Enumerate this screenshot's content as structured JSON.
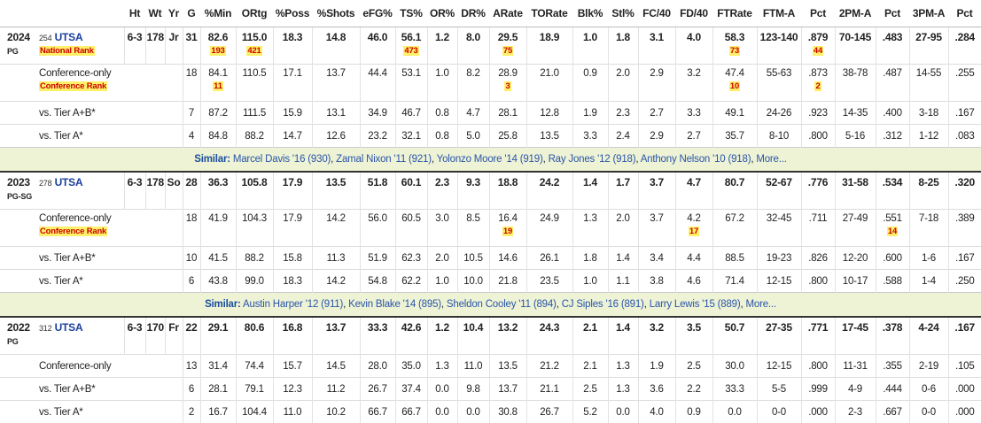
{
  "columns": [
    "Ht",
    "Wt",
    "Yr",
    "G",
    "%Min",
    "ORtg",
    "%Poss",
    "%Shots",
    "eFG%",
    "TS%",
    "OR%",
    "DR%",
    "ARate",
    "TORate",
    "Blk%",
    "Stl%",
    "FC/40",
    "FD/40",
    "FTRate",
    "FTM-A",
    "Pct",
    "2PM-A",
    "Pct",
    "3PM-A",
    "Pct"
  ],
  "seasons": [
    {
      "year": "2024",
      "position": "PG",
      "team_rank": "254",
      "team": "UTSA",
      "cells": [
        "6-3",
        "178",
        "Jr",
        "31",
        "82.6",
        "115.0",
        "18.3",
        "14.8",
        "46.0",
        "56.1",
        "1.2",
        "8.0",
        "29.5",
        "18.9",
        "1.0",
        "1.8",
        "3.1",
        "4.0",
        "58.3",
        "123-140",
        ".879",
        "70-145",
        ".483",
        "27-95",
        ".284"
      ],
      "rank": {
        "label": "National Rank",
        "values": [
          "193",
          "421",
          null,
          null,
          null,
          "473",
          null,
          null,
          "75",
          null,
          null,
          null,
          null,
          null,
          "73",
          null,
          "44",
          null,
          null,
          null,
          null
        ]
      },
      "splits": [
        {
          "label": "Conference-only",
          "cells": [
            "18",
            "84.1",
            "110.5",
            "17.1",
            "13.7",
            "44.4",
            "53.1",
            "1.0",
            "8.2",
            "28.9",
            "21.0",
            "0.9",
            "2.0",
            "2.9",
            "3.2",
            "47.4",
            "55-63",
            ".873",
            "38-78",
            ".487",
            "14-55",
            ".255"
          ],
          "rank": {
            "label": "Conference Rank",
            "values": [
              "11",
              null,
              null,
              null,
              null,
              null,
              null,
              null,
              "3",
              null,
              null,
              null,
              null,
              null,
              "10",
              null,
              "2",
              null,
              null,
              null,
              null
            ]
          }
        },
        {
          "label": "vs. Tier A+B*",
          "cells": [
            "7",
            "87.2",
            "111.5",
            "15.9",
            "13.1",
            "34.9",
            "46.7",
            "0.8",
            "4.7",
            "28.1",
            "12.8",
            "1.9",
            "2.3",
            "2.7",
            "3.3",
            "49.1",
            "24-26",
            ".923",
            "14-35",
            ".400",
            "3-18",
            ".167"
          ]
        },
        {
          "label": "vs. Tier A*",
          "cells": [
            "4",
            "84.8",
            "88.2",
            "14.7",
            "12.6",
            "23.2",
            "32.1",
            "0.8",
            "5.0",
            "25.8",
            "13.5",
            "3.3",
            "2.4",
            "2.9",
            "2.7",
            "35.7",
            "8-10",
            ".800",
            "5-16",
            ".312",
            "1-12",
            ".083"
          ]
        }
      ],
      "similar": {
        "label": "Similar:",
        "players": [
          "Marcel Davis '16 (930)",
          "Zamal Nixon '11 (921)",
          "Yolonzo Moore '14 (919)",
          "Ray Jones '12 (918)",
          "Anthony Nelson '10 (918)"
        ],
        "more": "More..."
      }
    },
    {
      "year": "2023",
      "position": "PG-SG",
      "team_rank": "278",
      "team": "UTSA",
      "cells": [
        "6-3",
        "178",
        "So",
        "28",
        "36.3",
        "105.8",
        "17.9",
        "13.5",
        "51.8",
        "60.1",
        "2.3",
        "9.3",
        "18.8",
        "24.2",
        "1.4",
        "1.7",
        "3.7",
        "4.7",
        "80.7",
        "52-67",
        ".776",
        "31-58",
        ".534",
        "8-25",
        ".320"
      ],
      "splits": [
        {
          "label": "Conference-only",
          "cells": [
            "18",
            "41.9",
            "104.3",
            "17.9",
            "14.2",
            "56.0",
            "60.5",
            "3.0",
            "8.5",
            "16.4",
            "24.9",
            "1.3",
            "2.0",
            "3.7",
            "4.2",
            "67.2",
            "32-45",
            ".711",
            "27-49",
            ".551",
            "7-18",
            ".389"
          ],
          "rank": {
            "label": "Conference Rank",
            "values": [
              null,
              null,
              null,
              null,
              null,
              null,
              null,
              null,
              "19",
              null,
              null,
              null,
              null,
              "17",
              null,
              null,
              null,
              null,
              "14",
              null,
              null
            ]
          }
        },
        {
          "label": "vs. Tier A+B*",
          "cells": [
            "10",
            "41.5",
            "88.2",
            "15.8",
            "11.3",
            "51.9",
            "62.3",
            "2.0",
            "10.5",
            "14.6",
            "26.1",
            "1.8",
            "1.4",
            "3.4",
            "4.4",
            "88.5",
            "19-23",
            ".826",
            "12-20",
            ".600",
            "1-6",
            ".167"
          ]
        },
        {
          "label": "vs. Tier A*",
          "cells": [
            "6",
            "43.8",
            "99.0",
            "18.3",
            "14.2",
            "54.8",
            "62.2",
            "1.0",
            "10.0",
            "21.8",
            "23.5",
            "1.0",
            "1.1",
            "3.8",
            "4.6",
            "71.4",
            "12-15",
            ".800",
            "10-17",
            ".588",
            "1-4",
            ".250"
          ]
        }
      ],
      "similar": {
        "label": "Similar:",
        "players": [
          "Austin Harper '12 (911)",
          "Kevin Blake '14 (895)",
          "Sheldon Cooley '11 (894)",
          "CJ Siples '16 (891)",
          "Larry Lewis '15 (889)"
        ],
        "more": "More..."
      }
    },
    {
      "year": "2022",
      "position": "PG",
      "team_rank": "312",
      "team": "UTSA",
      "cells": [
        "6-3",
        "170",
        "Fr",
        "22",
        "29.1",
        "80.6",
        "16.8",
        "13.7",
        "33.3",
        "42.6",
        "1.2",
        "10.4",
        "13.2",
        "24.3",
        "2.1",
        "1.4",
        "3.2",
        "3.5",
        "50.7",
        "27-35",
        ".771",
        "17-45",
        ".378",
        "4-24",
        ".167"
      ],
      "splits": [
        {
          "label": "Conference-only",
          "cells": [
            "13",
            "31.4",
            "74.4",
            "15.7",
            "14.5",
            "28.0",
            "35.0",
            "1.3",
            "11.0",
            "13.5",
            "21.2",
            "2.1",
            "1.3",
            "1.9",
            "2.5",
            "30.0",
            "12-15",
            ".800",
            "11-31",
            ".355",
            "2-19",
            ".105"
          ]
        },
        {
          "label": "vs. Tier A+B*",
          "cells": [
            "6",
            "28.1",
            "79.1",
            "12.3",
            "11.2",
            "26.7",
            "37.4",
            "0.0",
            "9.8",
            "13.7",
            "21.1",
            "2.5",
            "1.3",
            "3.6",
            "2.2",
            "33.3",
            "5-5",
            ".999",
            "4-9",
            ".444",
            "0-6",
            ".000"
          ]
        },
        {
          "label": "vs. Tier A*",
          "cells": [
            "2",
            "16.7",
            "104.4",
            "11.0",
            "10.2",
            "66.7",
            "66.7",
            "0.0",
            "0.0",
            "30.8",
            "26.7",
            "5.2",
            "0.0",
            "4.0",
            "0.9",
            "0.0",
            "0-0",
            ".000",
            "2-3",
            ".667",
            "0-0",
            ".000"
          ]
        }
      ]
    }
  ]
}
